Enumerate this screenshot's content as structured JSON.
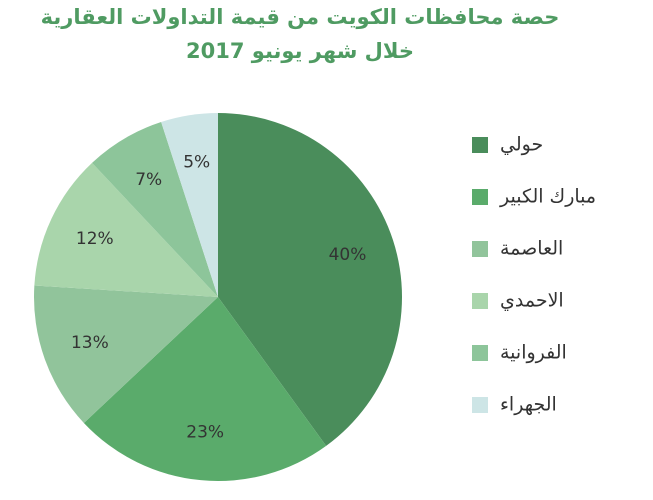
{
  "chart_data": {
    "type": "pie",
    "title": "حصة محافظات الكويت من قيمة التداولات العقارية",
    "subtitle": "خلال شهر يونيو 2017",
    "categories": [
      "حولي",
      "مبارك الكبير",
      "العاصمة",
      "الاحمدي",
      "الفروانية",
      "الجهراء"
    ],
    "values": [
      40,
      23,
      13,
      12,
      7,
      5
    ],
    "value_labels": [
      "40%",
      "23%",
      "13%",
      "12%",
      "7%",
      "5%"
    ],
    "colors": [
      "#4a8d5b",
      "#5aab6b",
      "#91c49b",
      "#a9d5ab",
      "#8dc59a",
      "#cde5e6"
    ]
  }
}
